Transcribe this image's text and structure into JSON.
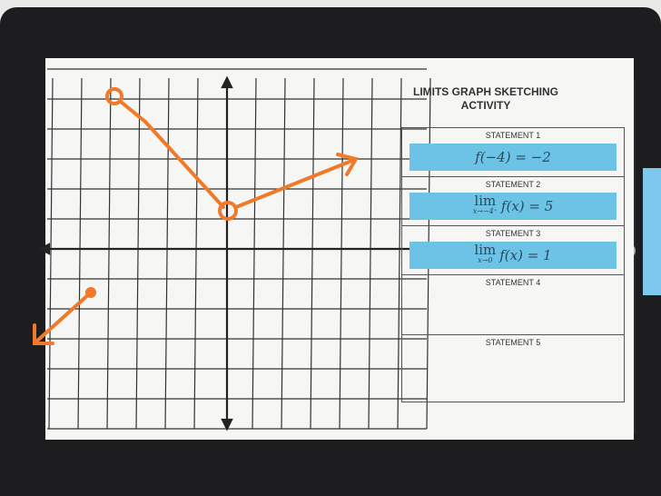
{
  "worksheet": {
    "title": "LIMITS GRAPH SKETCHING ACTIVITY",
    "statements": [
      {
        "label": "STATEMENT 1",
        "expr": "f(−4) = −2"
      },
      {
        "label": "STATEMENT 2",
        "lim": "lim",
        "sub": "x→−4⁺",
        "expr": "f(x) = 5"
      },
      {
        "label": "STATEMENT 3",
        "lim": "lim",
        "sub": "x→0",
        "expr": "f(x) = 1"
      },
      {
        "label": "STATEMENT 4"
      },
      {
        "label": "STATEMENT 5"
      }
    ]
  },
  "colors": {
    "sketch": "#f07a2a",
    "card": "#6cc3e6",
    "board": "#1d1d1f"
  }
}
